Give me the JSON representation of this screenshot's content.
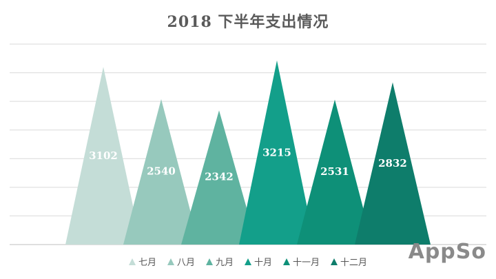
{
  "chart_data": {
    "type": "bar",
    "title": "2018 下半年支出情况",
    "categories": [
      "七月",
      "八月",
      "九月",
      "十月",
      "十一月",
      "十二月"
    ],
    "values": [
      3102,
      2540,
      2342,
      3215,
      2531,
      2832
    ],
    "ylim": [
      0,
      3500
    ],
    "grid": true,
    "legend_position": "bottom",
    "colors": [
      "#c4ddd7",
      "#97c9bd",
      "#5fb3a0",
      "#139f8a",
      "#0e9078",
      "#0e7d6b"
    ]
  },
  "watermark": "AppSo"
}
